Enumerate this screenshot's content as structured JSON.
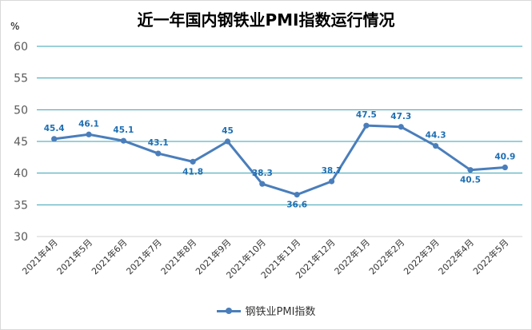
{
  "chart_data": {
    "type": "line",
    "title": "近一年国内钢铁业PMI指数运行情况",
    "unit_label": "%",
    "categories": [
      "2021年4月",
      "2021年5月",
      "2021年6月",
      "2021年7月",
      "2021年8月",
      "2021年9月",
      "2021年10月",
      "2021年11月",
      "2021年12月",
      "2022年1月",
      "2022年2月",
      "2022年3月",
      "2022年4月",
      "2022年5月"
    ],
    "series": [
      {
        "name": "钢铁业PMI指数",
        "values": [
          45.4,
          46.1,
          45.1,
          43.1,
          41.8,
          45,
          38.3,
          36.6,
          38.7,
          47.5,
          47.3,
          44.3,
          40.5,
          40.9
        ],
        "labels": [
          "45.4",
          "46.1",
          "45.1",
          "43.1",
          "41.8",
          "45",
          "38.3",
          "36.6",
          "38.7",
          "47.5",
          "47.3",
          "44.3",
          "40.5",
          "40.9"
        ],
        "color": "#4a7ebb",
        "label_color": "#1f6fb2"
      }
    ],
    "ylim": [
      30,
      60
    ],
    "yticks": [
      30,
      35,
      40,
      45,
      50,
      55,
      60
    ],
    "grid": true,
    "legend_position": "bottom"
  }
}
